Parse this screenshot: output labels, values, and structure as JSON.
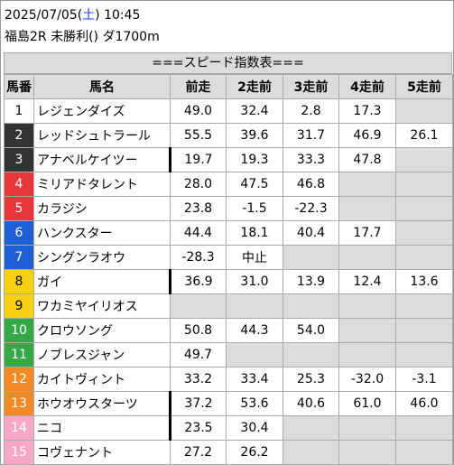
{
  "header": {
    "date": "2025/07/05",
    "day": "土",
    "time": "10:45",
    "race": "福島2R 未勝利() ダ1700m"
  },
  "banner": "===スピード指数表===",
  "columns": [
    "馬番",
    "馬名",
    "前走",
    "2走前",
    "3走前",
    "4走前",
    "5走前"
  ],
  "colors": {
    "w1": "#ffffff",
    "w2": "#333333",
    "w3": "#e8373b",
    "w4": "#1f5fd6",
    "w5": "#f5d110",
    "w6": "#35a84a",
    "w7": "#f08a24",
    "w8": "#f7a6c5"
  },
  "rows": [
    {
      "no": "1",
      "waku": "w1",
      "name": "レジェンダイズ",
      "marked": false,
      "v": [
        "49.0",
        "32.4",
        "2.8",
        "17.3",
        ""
      ]
    },
    {
      "no": "2",
      "waku": "w2",
      "name": "レッドシュトラール",
      "marked": false,
      "v": [
        "55.5",
        "39.6",
        "31.7",
        "46.9",
        "26.1"
      ]
    },
    {
      "no": "3",
      "waku": "w2",
      "name": "アナベルケイツー",
      "marked": true,
      "v": [
        "19.7",
        "19.3",
        "33.3",
        "47.8",
        ""
      ]
    },
    {
      "no": "4",
      "waku": "w3",
      "name": "ミリアドタレント",
      "marked": false,
      "v": [
        "28.0",
        "47.5",
        "46.8",
        "",
        ""
      ]
    },
    {
      "no": "5",
      "waku": "w3",
      "name": "カラジシ",
      "marked": false,
      "v": [
        "23.8",
        "-1.5",
        "-22.3",
        "",
        ""
      ]
    },
    {
      "no": "6",
      "waku": "w4",
      "name": "ハンクスター",
      "marked": false,
      "v": [
        "44.4",
        "18.1",
        "40.4",
        "17.7",
        ""
      ]
    },
    {
      "no": "7",
      "waku": "w4",
      "name": "シングンラオウ",
      "marked": false,
      "v": [
        "-28.3",
        "中止",
        "",
        "",
        ""
      ]
    },
    {
      "no": "8",
      "waku": "w5",
      "name": "ガイ",
      "marked": true,
      "v": [
        "36.9",
        "31.0",
        "13.9",
        "12.4",
        "13.6"
      ]
    },
    {
      "no": "9",
      "waku": "w5",
      "name": "ワカミヤイリオス",
      "marked": false,
      "v": [
        "",
        "",
        "",
        "",
        ""
      ]
    },
    {
      "no": "10",
      "waku": "w6",
      "name": "クロウソング",
      "marked": false,
      "v": [
        "50.8",
        "44.3",
        "54.0",
        "",
        ""
      ]
    },
    {
      "no": "11",
      "waku": "w6",
      "name": "ノブレスジャン",
      "marked": false,
      "v": [
        "49.7",
        "",
        "",
        "",
        ""
      ]
    },
    {
      "no": "12",
      "waku": "w7",
      "name": "カイトヴィント",
      "marked": false,
      "v": [
        "33.2",
        "33.4",
        "25.3",
        "-32.0",
        "-3.1"
      ]
    },
    {
      "no": "13",
      "waku": "w7",
      "name": "ホウオウスターツ",
      "marked": true,
      "v": [
        "37.2",
        "53.6",
        "40.6",
        "61.0",
        "46.0"
      ]
    },
    {
      "no": "14",
      "waku": "w8",
      "name": "ニコ",
      "marked": true,
      "v": [
        "23.5",
        "30.4",
        "",
        "",
        ""
      ]
    },
    {
      "no": "15",
      "waku": "w8",
      "name": "コヴェナント",
      "marked": false,
      "v": [
        "27.2",
        "26.2",
        "",
        "",
        ""
      ]
    }
  ]
}
